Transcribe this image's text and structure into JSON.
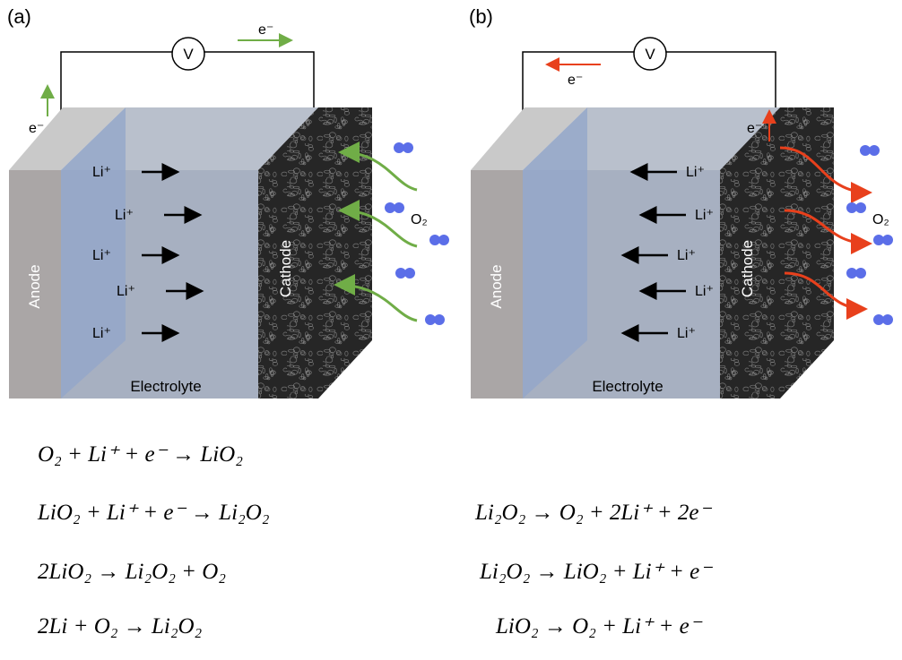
{
  "panels": [
    {
      "label": "(a)",
      "voltmeter": "V",
      "electron_labels": [
        "e⁻",
        "e⁻"
      ],
      "ion_labels": [
        "Li⁺",
        "Li⁺",
        "Li⁺",
        "Li⁺",
        "Li⁺"
      ],
      "oxygen_label": "O₂",
      "anode": "Anode",
      "cathode": "Cathode",
      "electrolyte": "Electrolyte"
    },
    {
      "label": "(b)",
      "voltmeter": "V",
      "electron_labels": [
        "e⁻",
        "e⁻"
      ],
      "ion_labels": [
        "Li⁺",
        "Li⁺",
        "Li⁺",
        "Li⁺",
        "Li⁺"
      ],
      "oxygen_label": "O₂",
      "anode": "Anode",
      "cathode": "Cathode",
      "electrolyte": "Electrolyte"
    }
  ],
  "equations": {
    "discharge": [
      "O₂ + Li⁺ + e⁻ → LiO₂",
      "LiO₂ + Li⁺ + e⁻ → Li₂O₂",
      "2LiO₂ → Li₂O₂ + O₂",
      "2Li + O₂ → Li₂O₂"
    ],
    "charge": [
      "Li₂O₂ → O₂ + 2Li⁺ + 2e⁻",
      "Li₂O₂ → LiO₂ + Li⁺ + e⁻",
      "LiO₂ → O₂ + Li⁺ + e⁻"
    ]
  }
}
